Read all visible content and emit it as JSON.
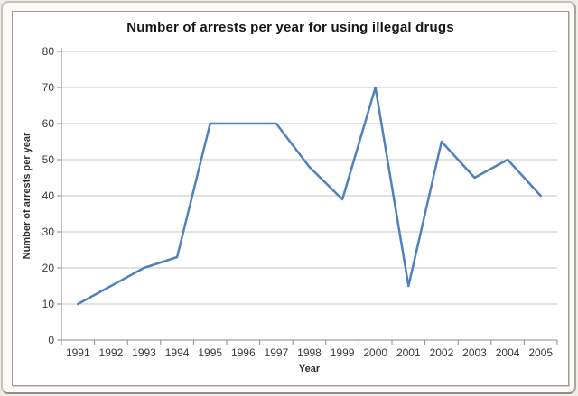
{
  "chart_data": {
    "type": "line",
    "title": "Number of arrests per year for using illegal drugs",
    "xlabel": "Year",
    "ylabel": "Number of arrests per year",
    "categories": [
      "1991",
      "1992",
      "1993",
      "1994",
      "1995",
      "1996",
      "1997",
      "1998",
      "1999",
      "2000",
      "2001",
      "2002",
      "2003",
      "2004",
      "2005"
    ],
    "series": [
      {
        "name": "Number of arrests",
        "values": [
          10,
          15,
          20,
          23,
          60,
          60,
          60,
          48,
          39,
          70,
          15,
          55,
          45,
          50,
          40
        ]
      }
    ],
    "ylim": [
      0,
      80
    ],
    "yticks": [
      0,
      10,
      20,
      30,
      40,
      50,
      60,
      70,
      80
    ],
    "grid": true,
    "legend_position": "none",
    "colors": {
      "line": "#4f81bd",
      "gridline": "#c6c6c6",
      "axis": "#8a8a8a",
      "tick_text": "#3a3a3a",
      "title_text": "#161616",
      "plot_background": "#ffffff"
    }
  }
}
